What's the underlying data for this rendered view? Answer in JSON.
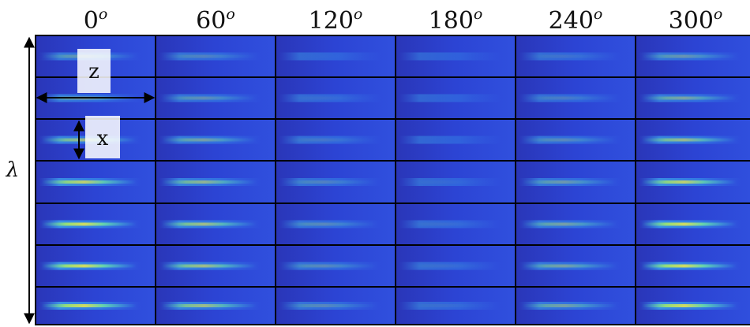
{
  "column_headers": [
    {
      "label": "0",
      "superscript": "o"
    },
    {
      "label": "60",
      "superscript": "o"
    },
    {
      "label": "120",
      "superscript": "o"
    },
    {
      "label": "180",
      "superscript": "o"
    },
    {
      "label": "240",
      "superscript": "o"
    },
    {
      "label": "300",
      "superscript": "o"
    }
  ],
  "annotations": {
    "z_label": "z",
    "x_label": "x",
    "row_axis_label": "λ"
  }
}
